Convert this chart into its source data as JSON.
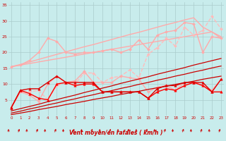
{
  "xlabel": "Vent moyen/en rafales ( km/h )",
  "x": [
    0,
    1,
    2,
    3,
    4,
    5,
    6,
    7,
    8,
    9,
    10,
    11,
    12,
    13,
    14,
    15,
    16,
    17,
    18,
    19,
    20,
    21,
    22,
    23
  ],
  "series": [
    {
      "name": "pink_linear1",
      "color": "#ffaaaa",
      "linewidth": 1.0,
      "marker": null,
      "markersize": 0,
      "linestyle": "-",
      "y": [
        15.5,
        16.0,
        16.5,
        17.0,
        17.5,
        18.0,
        18.5,
        19.0,
        19.5,
        20.0,
        20.5,
        21.0,
        21.5,
        22.0,
        22.5,
        23.0,
        23.5,
        24.0,
        24.5,
        25.0,
        25.5,
        26.0,
        26.5,
        24.5
      ]
    },
    {
      "name": "pink_linear2",
      "color": "#ffaaaa",
      "linewidth": 1.0,
      "marker": null,
      "markersize": 0,
      "linestyle": "-",
      "y": [
        15.5,
        16.2,
        17.0,
        17.8,
        18.6,
        19.4,
        20.2,
        21.0,
        21.8,
        22.5,
        23.3,
        24.1,
        24.9,
        25.7,
        26.4,
        27.2,
        28.0,
        28.8,
        29.5,
        30.3,
        31.0,
        28.0,
        26.5,
        25.0
      ]
    },
    {
      "name": "pink_zigzag1",
      "color": "#ffaaaa",
      "linewidth": 1.0,
      "marker": "D",
      "markersize": 2.0,
      "linestyle": "-",
      "y": [
        15.5,
        16.0,
        17.5,
        20.0,
        24.5,
        23.5,
        20.0,
        19.5,
        20.0,
        20.0,
        20.5,
        21.0,
        20.0,
        21.0,
        24.0,
        21.0,
        25.5,
        26.5,
        27.0,
        29.5,
        29.0,
        20.0,
        25.0,
        24.5
      ]
    },
    {
      "name": "pink_dashed_spiky",
      "color": "#ffbbbb",
      "linewidth": 1.0,
      "marker": "D",
      "markersize": 2.0,
      "linestyle": "--",
      "y": [
        2.5,
        7.5,
        7.5,
        8.0,
        5.0,
        9.5,
        10.5,
        10.0,
        13.5,
        13.5,
        10.5,
        12.0,
        12.5,
        14.5,
        12.0,
        19.5,
        21.5,
        24.5,
        22.0,
        28.0,
        25.5,
        27.0,
        31.5,
        27.5
      ]
    },
    {
      "name": "pink_mid",
      "color": "#ffaaaa",
      "linewidth": 1.0,
      "marker": "D",
      "markersize": 2.0,
      "linestyle": "-",
      "y": [
        2.5,
        7.5,
        6.5,
        4.5,
        10.0,
        12.5,
        10.5,
        11.0,
        14.0,
        10.5,
        10.5,
        10.5,
        12.5,
        12.0,
        11.5,
        7.5,
        9.0,
        9.5,
        8.0,
        10.5,
        10.5,
        9.5,
        8.0,
        11.5
      ]
    },
    {
      "name": "red_markers1",
      "color": "#ff0000",
      "linewidth": 1.0,
      "marker": "^",
      "markersize": 2.5,
      "linestyle": "-",
      "y": [
        2.5,
        8.0,
        7.0,
        5.5,
        5.0,
        10.0,
        10.5,
        9.5,
        10.0,
        10.0,
        7.5,
        7.5,
        7.5,
        7.5,
        7.5,
        5.5,
        7.5,
        8.5,
        8.0,
        9.5,
        10.5,
        9.5,
        7.5,
        7.5
      ]
    },
    {
      "name": "red_markers2",
      "color": "#dd0000",
      "linewidth": 1.0,
      "marker": "^",
      "markersize": 2.5,
      "linestyle": "-",
      "y": [
        2.5,
        8.0,
        8.5,
        8.5,
        10.5,
        12.5,
        10.5,
        10.5,
        10.5,
        10.5,
        7.5,
        7.5,
        7.5,
        7.5,
        7.5,
        5.5,
        8.5,
        9.5,
        9.5,
        10.5,
        10.5,
        10.5,
        7.5,
        11.5
      ]
    },
    {
      "name": "red_linear1",
      "color": "#cc0000",
      "linewidth": 0.9,
      "marker": null,
      "markersize": 0,
      "linestyle": "-",
      "y": [
        0.3,
        0.8,
        1.3,
        1.9,
        2.4,
        2.9,
        3.5,
        4.0,
        4.5,
        5.1,
        5.6,
        6.1,
        6.7,
        7.2,
        7.7,
        8.3,
        8.8,
        9.3,
        9.9,
        10.4,
        10.9,
        11.5,
        12.0,
        12.5
      ]
    },
    {
      "name": "red_linear2",
      "color": "#cc0000",
      "linewidth": 0.9,
      "marker": null,
      "markersize": 0,
      "linestyle": "-",
      "y": [
        0.8,
        1.4,
        2.1,
        2.7,
        3.4,
        4.0,
        4.7,
        5.3,
        6.0,
        6.6,
        7.3,
        7.9,
        8.6,
        9.2,
        9.9,
        10.5,
        11.2,
        11.8,
        12.5,
        13.1,
        13.8,
        14.4,
        15.1,
        15.7
      ]
    },
    {
      "name": "red_linear3",
      "color": "#cc0000",
      "linewidth": 0.9,
      "marker": null,
      "markersize": 0,
      "linestyle": "-",
      "y": [
        1.5,
        2.2,
        2.9,
        3.6,
        4.4,
        5.1,
        5.8,
        6.5,
        7.3,
        8.0,
        8.7,
        9.4,
        10.2,
        10.9,
        11.6,
        12.3,
        13.1,
        13.8,
        14.5,
        15.2,
        16.0,
        16.7,
        17.4,
        18.1
      ]
    }
  ],
  "ylim": [
    0,
    36
  ],
  "yticks": [
    5,
    10,
    15,
    20,
    25,
    30,
    35
  ],
  "xlim": [
    -0.3,
    23.3
  ],
  "xticks": [
    0,
    1,
    2,
    3,
    4,
    5,
    6,
    7,
    8,
    9,
    10,
    11,
    12,
    13,
    14,
    15,
    16,
    17,
    18,
    19,
    20,
    21,
    22,
    23
  ],
  "bg_color": "#c8ecec",
  "grid_color": "#aacccc",
  "xlabel_color": "#cc0000",
  "tick_color": "#cc0000",
  "arrow_color": "#cc0000"
}
